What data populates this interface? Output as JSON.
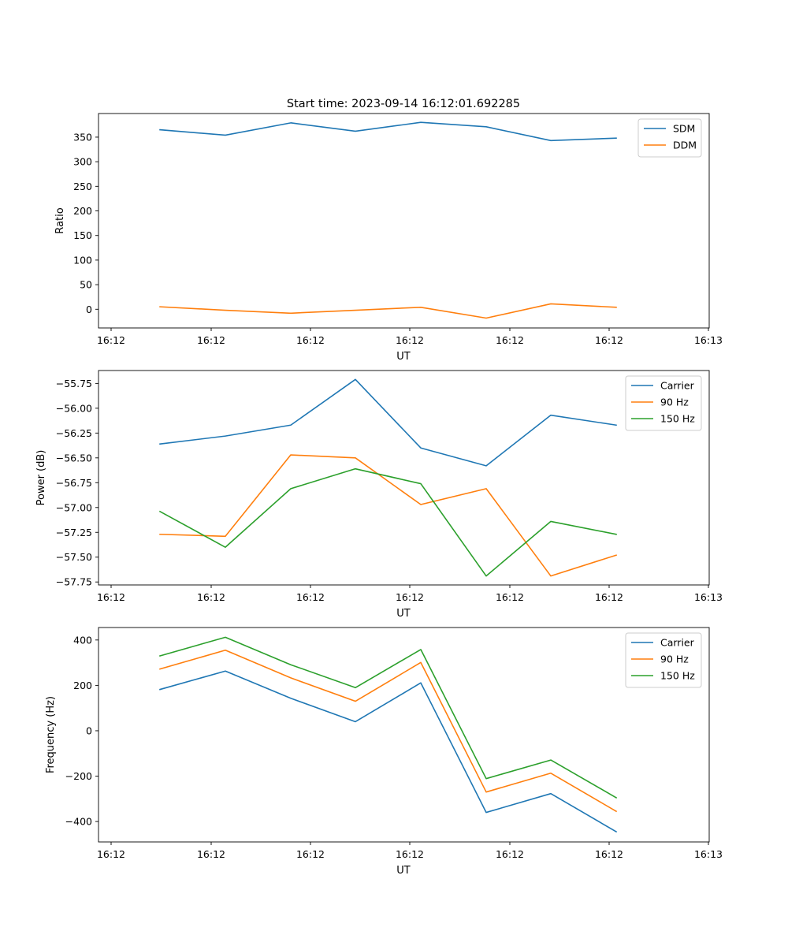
{
  "figure_title": "Start time: 2023-09-14 16:12:01.692285",
  "colors": {
    "blue": "#1f77b4",
    "orange": "#ff7f0e",
    "green": "#2ca02c"
  },
  "chart_data": [
    {
      "type": "line",
      "title": "Start time: 2023-09-14 16:12:01.692285",
      "xlabel": "UT",
      "ylabel": "Ratio",
      "x_tick_labels": [
        "16:12",
        "16:12",
        "16:12",
        "16:12",
        "16:12",
        "16:12",
        "16:13"
      ],
      "y_ticks": [
        0,
        50,
        100,
        150,
        200,
        250,
        300,
        350
      ],
      "ylim": [
        -38,
        398
      ],
      "legend_position": "top-right",
      "series": [
        {
          "name": "SDM",
          "color": "#1f77b4",
          "values": [
            365,
            354,
            379,
            362,
            380,
            371,
            343,
            348
          ]
        },
        {
          "name": "DDM",
          "color": "#ff7f0e",
          "values": [
            5,
            -2,
            -8,
            -2,
            4,
            -18,
            11,
            4
          ]
        }
      ]
    },
    {
      "type": "line",
      "title": "",
      "xlabel": "UT",
      "ylabel": "Power (dB)",
      "x_tick_labels": [
        "16:12",
        "16:12",
        "16:12",
        "16:12",
        "16:12",
        "16:12",
        "16:13"
      ],
      "y_ticks": [
        -57.75,
        -57.5,
        -57.25,
        -57.0,
        -56.75,
        -56.5,
        -56.25,
        -56.0,
        -55.75
      ],
      "y_tick_labels": [
        "−57.75",
        "−57.50",
        "−57.25",
        "−57.00",
        "−56.75",
        "−56.50",
        "−56.25",
        "−56.00",
        "−55.75"
      ],
      "ylim": [
        -57.78,
        -55.62
      ],
      "legend_position": "top-right",
      "series": [
        {
          "name": "Carrier",
          "color": "#1f77b4",
          "values": [
            -56.36,
            -56.28,
            -56.17,
            -55.71,
            -56.4,
            -56.58,
            -56.07,
            -56.17
          ]
        },
        {
          "name": "90 Hz",
          "color": "#ff7f0e",
          "values": [
            -57.27,
            -57.29,
            -56.47,
            -56.5,
            -56.97,
            -56.81,
            -57.69,
            -57.48
          ]
        },
        {
          "name": "150 Hz",
          "color": "#2ca02c",
          "values": [
            -57.04,
            -57.4,
            -56.81,
            -56.61,
            -56.76,
            -57.69,
            -57.14,
            -57.27
          ]
        }
      ]
    },
    {
      "type": "line",
      "title": "",
      "xlabel": "UT",
      "ylabel": "Frequency (Hz)",
      "x_tick_labels": [
        "16:12",
        "16:12",
        "16:12",
        "16:12",
        "16:12",
        "16:12",
        "16:13"
      ],
      "y_ticks": [
        -400,
        -200,
        0,
        200,
        400
      ],
      "y_tick_labels": [
        "−400",
        "−200",
        "0",
        "200",
        "400"
      ],
      "ylim": [
        -490,
        455
      ],
      "legend_position": "top-right",
      "series": [
        {
          "name": "Carrier",
          "color": "#1f77b4",
          "values": [
            182,
            263,
            143,
            40,
            211,
            -360,
            -277,
            -445
          ]
        },
        {
          "name": "90 Hz",
          "color": "#ff7f0e",
          "values": [
            272,
            355,
            233,
            130,
            301,
            -270,
            -187,
            -355
          ]
        },
        {
          "name": "150 Hz",
          "color": "#2ca02c",
          "values": [
            330,
            412,
            291,
            190,
            358,
            -211,
            -129,
            -295
          ]
        }
      ]
    }
  ]
}
